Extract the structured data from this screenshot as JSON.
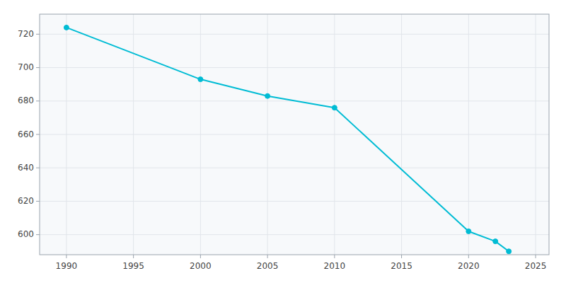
{
  "chart_data": {
    "type": "line",
    "x": [
      1990,
      2000,
      2005,
      2010,
      2020,
      2022,
      2023
    ],
    "values": [
      724,
      693,
      683,
      676,
      602,
      596,
      590
    ],
    "color": "#00BCD4",
    "marker": "circle",
    "xlim": [
      1988,
      2026
    ],
    "ylim": [
      588,
      732
    ],
    "xticks": [
      1990,
      1995,
      2000,
      2005,
      2010,
      2015,
      2020,
      2025
    ],
    "yticks": [
      600,
      620,
      640,
      660,
      680,
      700,
      720
    ],
    "grid": true
  }
}
